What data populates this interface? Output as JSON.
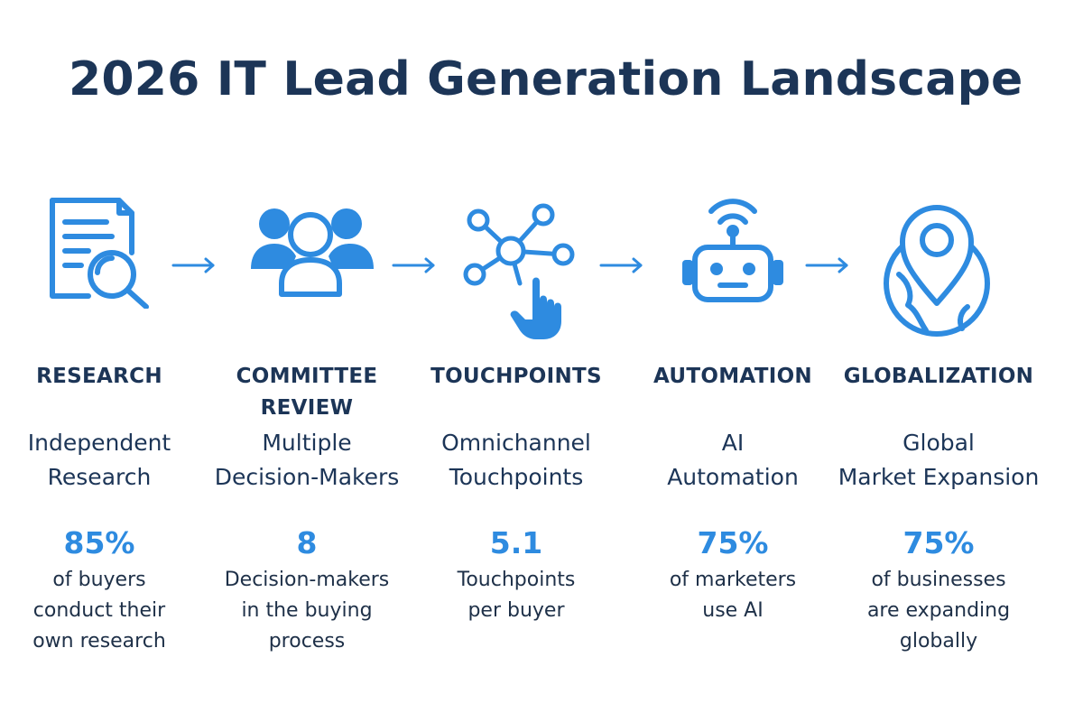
{
  "title": "2026 IT Lead Generation Landscape",
  "accent_color": "#2e8be0",
  "text_color": "#1c3557",
  "steps": [
    {
      "icon": "document-search-icon",
      "stage": "RESEARCH",
      "headline": [
        "Independent",
        "Research"
      ],
      "stat": "85%",
      "description": [
        "of buyers",
        "conduct their",
        "own research"
      ]
    },
    {
      "icon": "group-people-icon",
      "stage": [
        "COMMITTEE",
        "REVIEW"
      ],
      "headline": [
        "Multiple",
        "Decision-Makers"
      ],
      "stat": "8",
      "description": [
        "Decision-makers",
        "in the buying",
        "process"
      ]
    },
    {
      "icon": "network-hand-icon",
      "stage": "TOUCHPOINTS",
      "headline": [
        "Omnichannel",
        "Touchpoints"
      ],
      "stat": "5.1",
      "description": [
        "Touchpoints",
        "per buyer"
      ]
    },
    {
      "icon": "robot-icon",
      "stage": "AUTOMATION",
      "headline": [
        "AI",
        "Automation"
      ],
      "stat": "75%",
      "description": [
        "of marketers",
        "use AI"
      ]
    },
    {
      "icon": "globe-pin-icon",
      "stage": "GLOBALIZATION",
      "headline": [
        "Global",
        "Market Expansion"
      ],
      "stat": "75%",
      "description": [
        "of businesses",
        "are expanding",
        "globally"
      ]
    }
  ]
}
